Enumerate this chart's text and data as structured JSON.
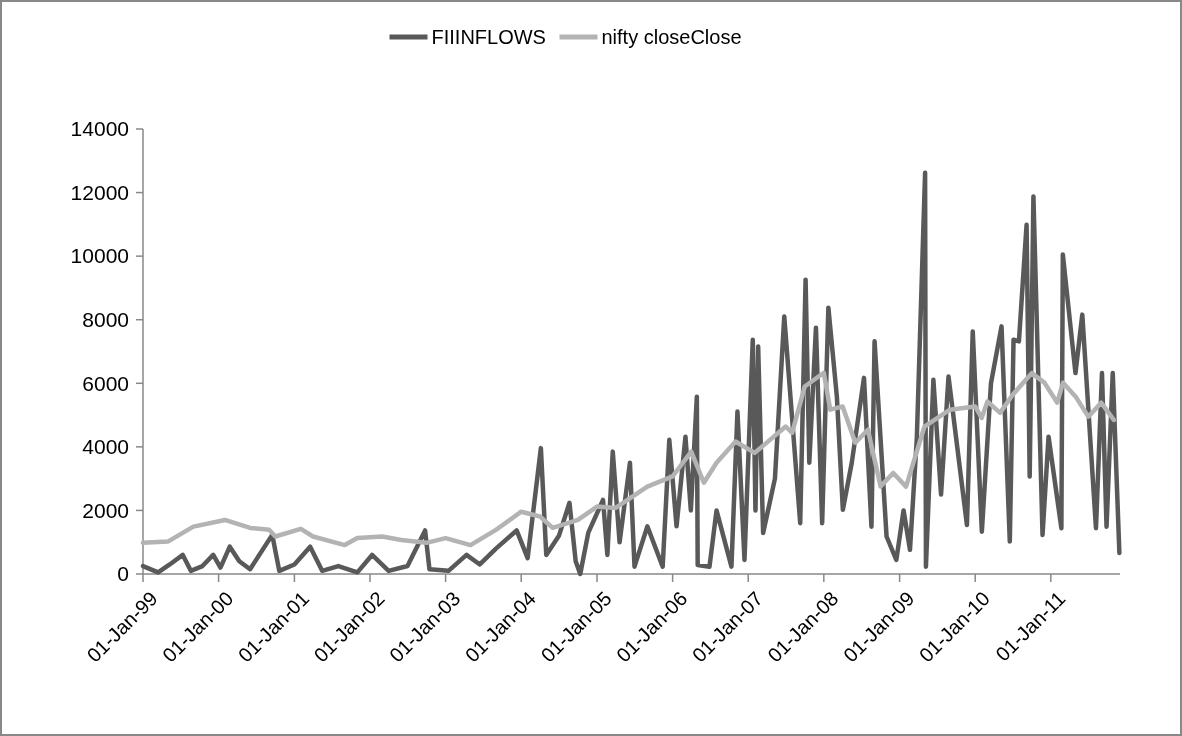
{
  "chart_data": {
    "type": "line",
    "legend": "top",
    "xlim": [
      "1999-01-01",
      "2011-12-01"
    ],
    "xticks": [
      {
        "value": "1999-01-01",
        "label": "01-Jan-99"
      },
      {
        "value": "2000-01-01",
        "label": "01-Jan-00"
      },
      {
        "value": "2001-01-01",
        "label": "01-Jan-01"
      },
      {
        "value": "2002-01-01",
        "label": "01-Jan-02"
      },
      {
        "value": "2003-01-01",
        "label": "01-Jan-03"
      },
      {
        "value": "2004-01-01",
        "label": "01-Jan-04"
      },
      {
        "value": "2005-01-01",
        "label": "01-Jan-05"
      },
      {
        "value": "2006-01-01",
        "label": "01-Jan-06"
      },
      {
        "value": "2007-01-01",
        "label": "01-Jan-07"
      },
      {
        "value": "2008-01-01",
        "label": "01-Jan-08"
      },
      {
        "value": "2009-01-01",
        "label": "01-Jan-09"
      },
      {
        "value": "2010-01-01",
        "label": "01-Jan-10"
      },
      {
        "value": "2011-01-01",
        "label": "01-Jan-11"
      }
    ],
    "ylim": [
      0,
      14000
    ],
    "yticks": [
      0,
      2000,
      4000,
      6000,
      8000,
      10000,
      12000,
      14000
    ],
    "series": [
      {
        "name": "FIIINFLOWS",
        "color": "#595959",
        "x": [
          "1999-01-01",
          "1999-03-15",
          "1999-05-10",
          "1999-07-12",
          "1999-08-20",
          "1999-10-15",
          "1999-12-06",
          "2000-01-10",
          "2000-02-24",
          "2000-04-10",
          "2000-06-01",
          "2000-09-16",
          "2000-10-20",
          "2001-01-01",
          "2001-03-18",
          "2001-05-15",
          "2001-08-01",
          "2001-11-01",
          "2002-01-11",
          "2002-04-01",
          "2002-07-01",
          "2002-09-24",
          "2002-10-15",
          "2003-01-15",
          "2003-04-12",
          "2003-06-15",
          "2003-09-01",
          "2003-12-10",
          "2004-02-01",
          "2004-04-05",
          "2004-05-01",
          "2004-07-01",
          "2004-08-21",
          "2004-09-20",
          "2004-10-12",
          "2004-11-20",
          "2005-01-30",
          "2005-02-20",
          "2005-03-18",
          "2005-04-20",
          "2005-06-09",
          "2005-07-01",
          "2005-09-01",
          "2005-11-14",
          "2005-12-16",
          "2006-01-20",
          "2006-03-04",
          "2006-03-30",
          "2006-04-28",
          "2006-05-02",
          "2006-06-28",
          "2006-08-01",
          "2006-10-12",
          "2006-11-10",
          "2006-12-14",
          "2007-01-23",
          "2007-02-05",
          "2007-02-18",
          "2007-03-14",
          "2007-05-10",
          "2007-06-24",
          "2007-09-09",
          "2007-10-05",
          "2007-10-23",
          "2007-11-24",
          "2007-12-24",
          "2008-01-23",
          "2008-03-04",
          "2008-04-02",
          "2008-05-15",
          "2008-07-13",
          "2008-08-18",
          "2008-09-02",
          "2008-10-30",
          "2008-12-16",
          "2009-01-20",
          "2009-02-20",
          "2009-03-25",
          "2009-05-04",
          "2009-05-08",
          "2009-06-13",
          "2009-07-20",
          "2009-08-25",
          "2009-11-22",
          "2009-12-20",
          "2010-02-02",
          "2010-03-18",
          "2010-05-08",
          "2010-06-17",
          "2010-07-05",
          "2010-07-31",
          "2010-09-06",
          "2010-09-21",
          "2010-10-09",
          "2010-11-22",
          "2010-12-21",
          "2011-02-21",
          "2011-02-28",
          "2011-04-30",
          "2011-06-02",
          "2011-08-07",
          "2011-09-05",
          "2011-09-27",
          "2011-10-27",
          "2011-11-28"
        ],
        "values": [
          250,
          50,
          300,
          600,
          100,
          250,
          600,
          200,
          860,
          400,
          150,
          1230,
          100,
          300,
          860,
          100,
          250,
          50,
          600,
          100,
          250,
          1370,
          150,
          100,
          600,
          300,
          800,
          1370,
          500,
          3960,
          600,
          1200,
          2240,
          400,
          0,
          1300,
          2330,
          600,
          3850,
          1000,
          3500,
          230,
          1500,
          230,
          4220,
          1500,
          4320,
          2000,
          5580,
          280,
          230,
          2000,
          230,
          5110,
          440,
          7370,
          2000,
          7160,
          1290,
          3000,
          8100,
          1600,
          9260,
          3500,
          7750,
          1600,
          8380,
          5580,
          2020,
          3500,
          6170,
          1490,
          7320,
          1180,
          440,
          2000,
          760,
          4270,
          12620,
          230,
          6110,
          2500,
          6210,
          1540,
          7630,
          1330,
          6000,
          7790,
          1020,
          7370,
          7320,
          10990,
          3070,
          11880,
          1230,
          4320,
          1440,
          10050,
          6320,
          8160,
          1440,
          6320,
          1490,
          6320,
          660
        ]
      },
      {
        "name": "nifty closeClose",
        "color": "#b3b3b3",
        "x": [
          "1999-01-01",
          "1999-05-01",
          "1999-09-01",
          "2000-02-01",
          "2000-06-01",
          "2000-09-01",
          "2000-10-01",
          "2001-02-01",
          "2001-04-01",
          "2001-09-01",
          "2001-11-01",
          "2002-03-01",
          "2002-06-01",
          "2002-10-01",
          "2003-01-01",
          "2003-05-01",
          "2003-09-01",
          "2004-01-01",
          "2004-04-01",
          "2004-06-01",
          "2004-10-01",
          "2005-01-01",
          "2005-04-01",
          "2005-09-01",
          "2006-01-01",
          "2006-04-01",
          "2006-06-01",
          "2006-08-01",
          "2006-11-01",
          "2007-02-01",
          "2007-07-01",
          "2007-08-01",
          "2007-10-01",
          "2008-01-01",
          "2008-02-01",
          "2008-04-01",
          "2008-06-01",
          "2008-08-01",
          "2008-10-01",
          "2008-12-01",
          "2009-02-01",
          "2009-05-01",
          "2009-09-01",
          "2010-01-01",
          "2010-02-01",
          "2010-03-01",
          "2010-05-01",
          "2010-07-01",
          "2010-10-01",
          "2010-12-01",
          "2011-02-01",
          "2011-03-01",
          "2011-05-01",
          "2011-07-01",
          "2011-09-01",
          "2011-11-01"
        ],
        "values": [
          980,
          1020,
          1490,
          1700,
          1450,
          1390,
          1180,
          1420,
          1180,
          910,
          1130,
          1180,
          1070,
          980,
          1130,
          910,
          1390,
          1960,
          1810,
          1450,
          1700,
          2120,
          2080,
          2750,
          3070,
          3850,
          2870,
          3500,
          4170,
          3810,
          4640,
          4440,
          5900,
          6330,
          5170,
          5270,
          4130,
          4540,
          2750,
          3180,
          2750,
          4640,
          5170,
          5270,
          4910,
          5430,
          5070,
          5640,
          6320,
          6020,
          5390,
          6020,
          5580,
          4950,
          5390,
          4850
        ]
      }
    ]
  }
}
